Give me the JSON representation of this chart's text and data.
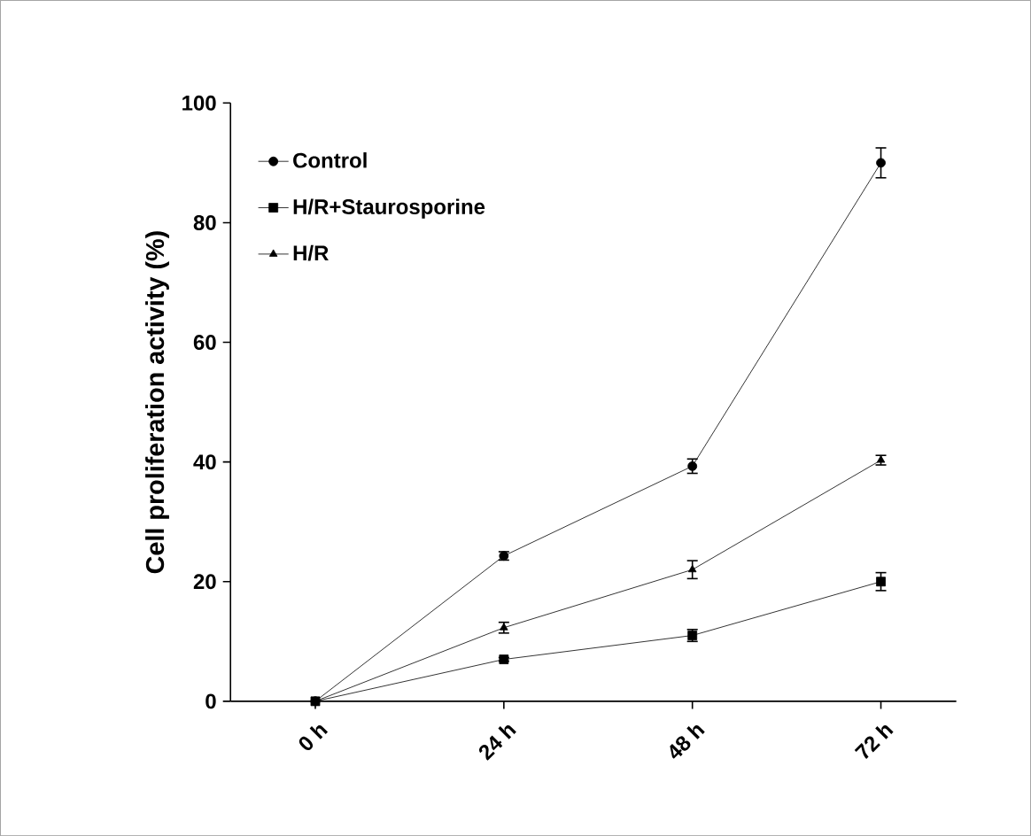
{
  "chart_data": {
    "type": "line",
    "ylabel": "Cell proliferation activity (%)",
    "categories": [
      "0 h",
      "24 h",
      "48 h",
      "72 h"
    ],
    "series": [
      {
        "name": "Control",
        "color": "#000000",
        "marker": "circle",
        "values": [
          0,
          24.3,
          39.3,
          90
        ],
        "errors": [
          null,
          0.7,
          1.2,
          2.5
        ]
      },
      {
        "name": "H/R+Staurosporine",
        "color": "#000000",
        "marker": "square",
        "values": [
          0,
          7,
          11,
          20
        ],
        "errors": [
          null,
          0.3,
          1,
          1.5
        ]
      },
      {
        "name": "H/R",
        "color": "#000000",
        "marker": "triangle",
        "values": [
          0,
          12.3,
          22,
          40.3
        ],
        "errors": [
          null,
          0.9,
          1.5,
          0.8
        ]
      }
    ],
    "ylim": [
      0,
      100
    ],
    "yticks": [
      0,
      20,
      40,
      60,
      80,
      100
    ],
    "grid": false,
    "legend": "top left",
    "line_style": "solid"
  }
}
